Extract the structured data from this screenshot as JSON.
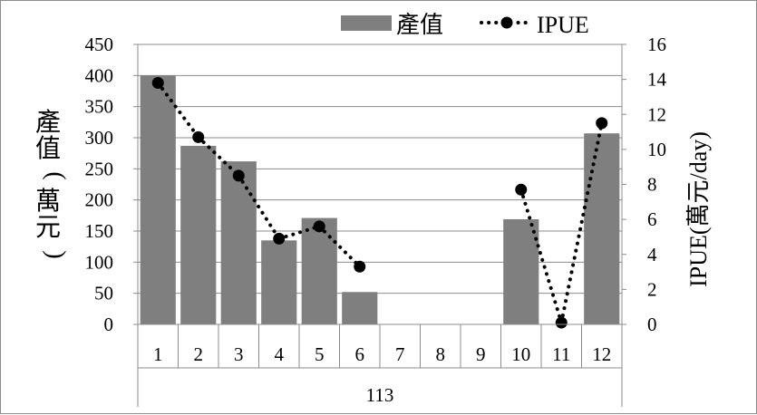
{
  "chart_data": {
    "type": "bar",
    "categories": [
      "1",
      "2",
      "3",
      "4",
      "5",
      "6",
      "7",
      "8",
      "9",
      "10",
      "11",
      "12"
    ],
    "group_label": "113",
    "series": [
      {
        "name": "產值",
        "kind": "bar",
        "axis": "left",
        "color": "#7f7f7f",
        "values": [
          400,
          287,
          262,
          135,
          171,
          52,
          null,
          null,
          null,
          169,
          null,
          307
        ]
      },
      {
        "name": "IPUE",
        "kind": "line",
        "axis": "right",
        "color": "#000000",
        "style": "dotted-with-markers",
        "values": [
          13.8,
          10.7,
          8.5,
          4.9,
          5.6,
          3.3,
          null,
          null,
          null,
          7.7,
          0.1,
          11.5
        ]
      }
    ],
    "ylabel": "產值(萬元)",
    "y2label": "IPUE(萬元/day)",
    "ylim": [
      0,
      450
    ],
    "y2lim": [
      0,
      16
    ],
    "yticks": [
      0,
      50,
      100,
      150,
      200,
      250,
      300,
      350,
      400,
      450
    ],
    "y2ticks": [
      0,
      2,
      4,
      6,
      8,
      10,
      12,
      14,
      16
    ],
    "grid": "horizontal",
    "legend": "top"
  }
}
